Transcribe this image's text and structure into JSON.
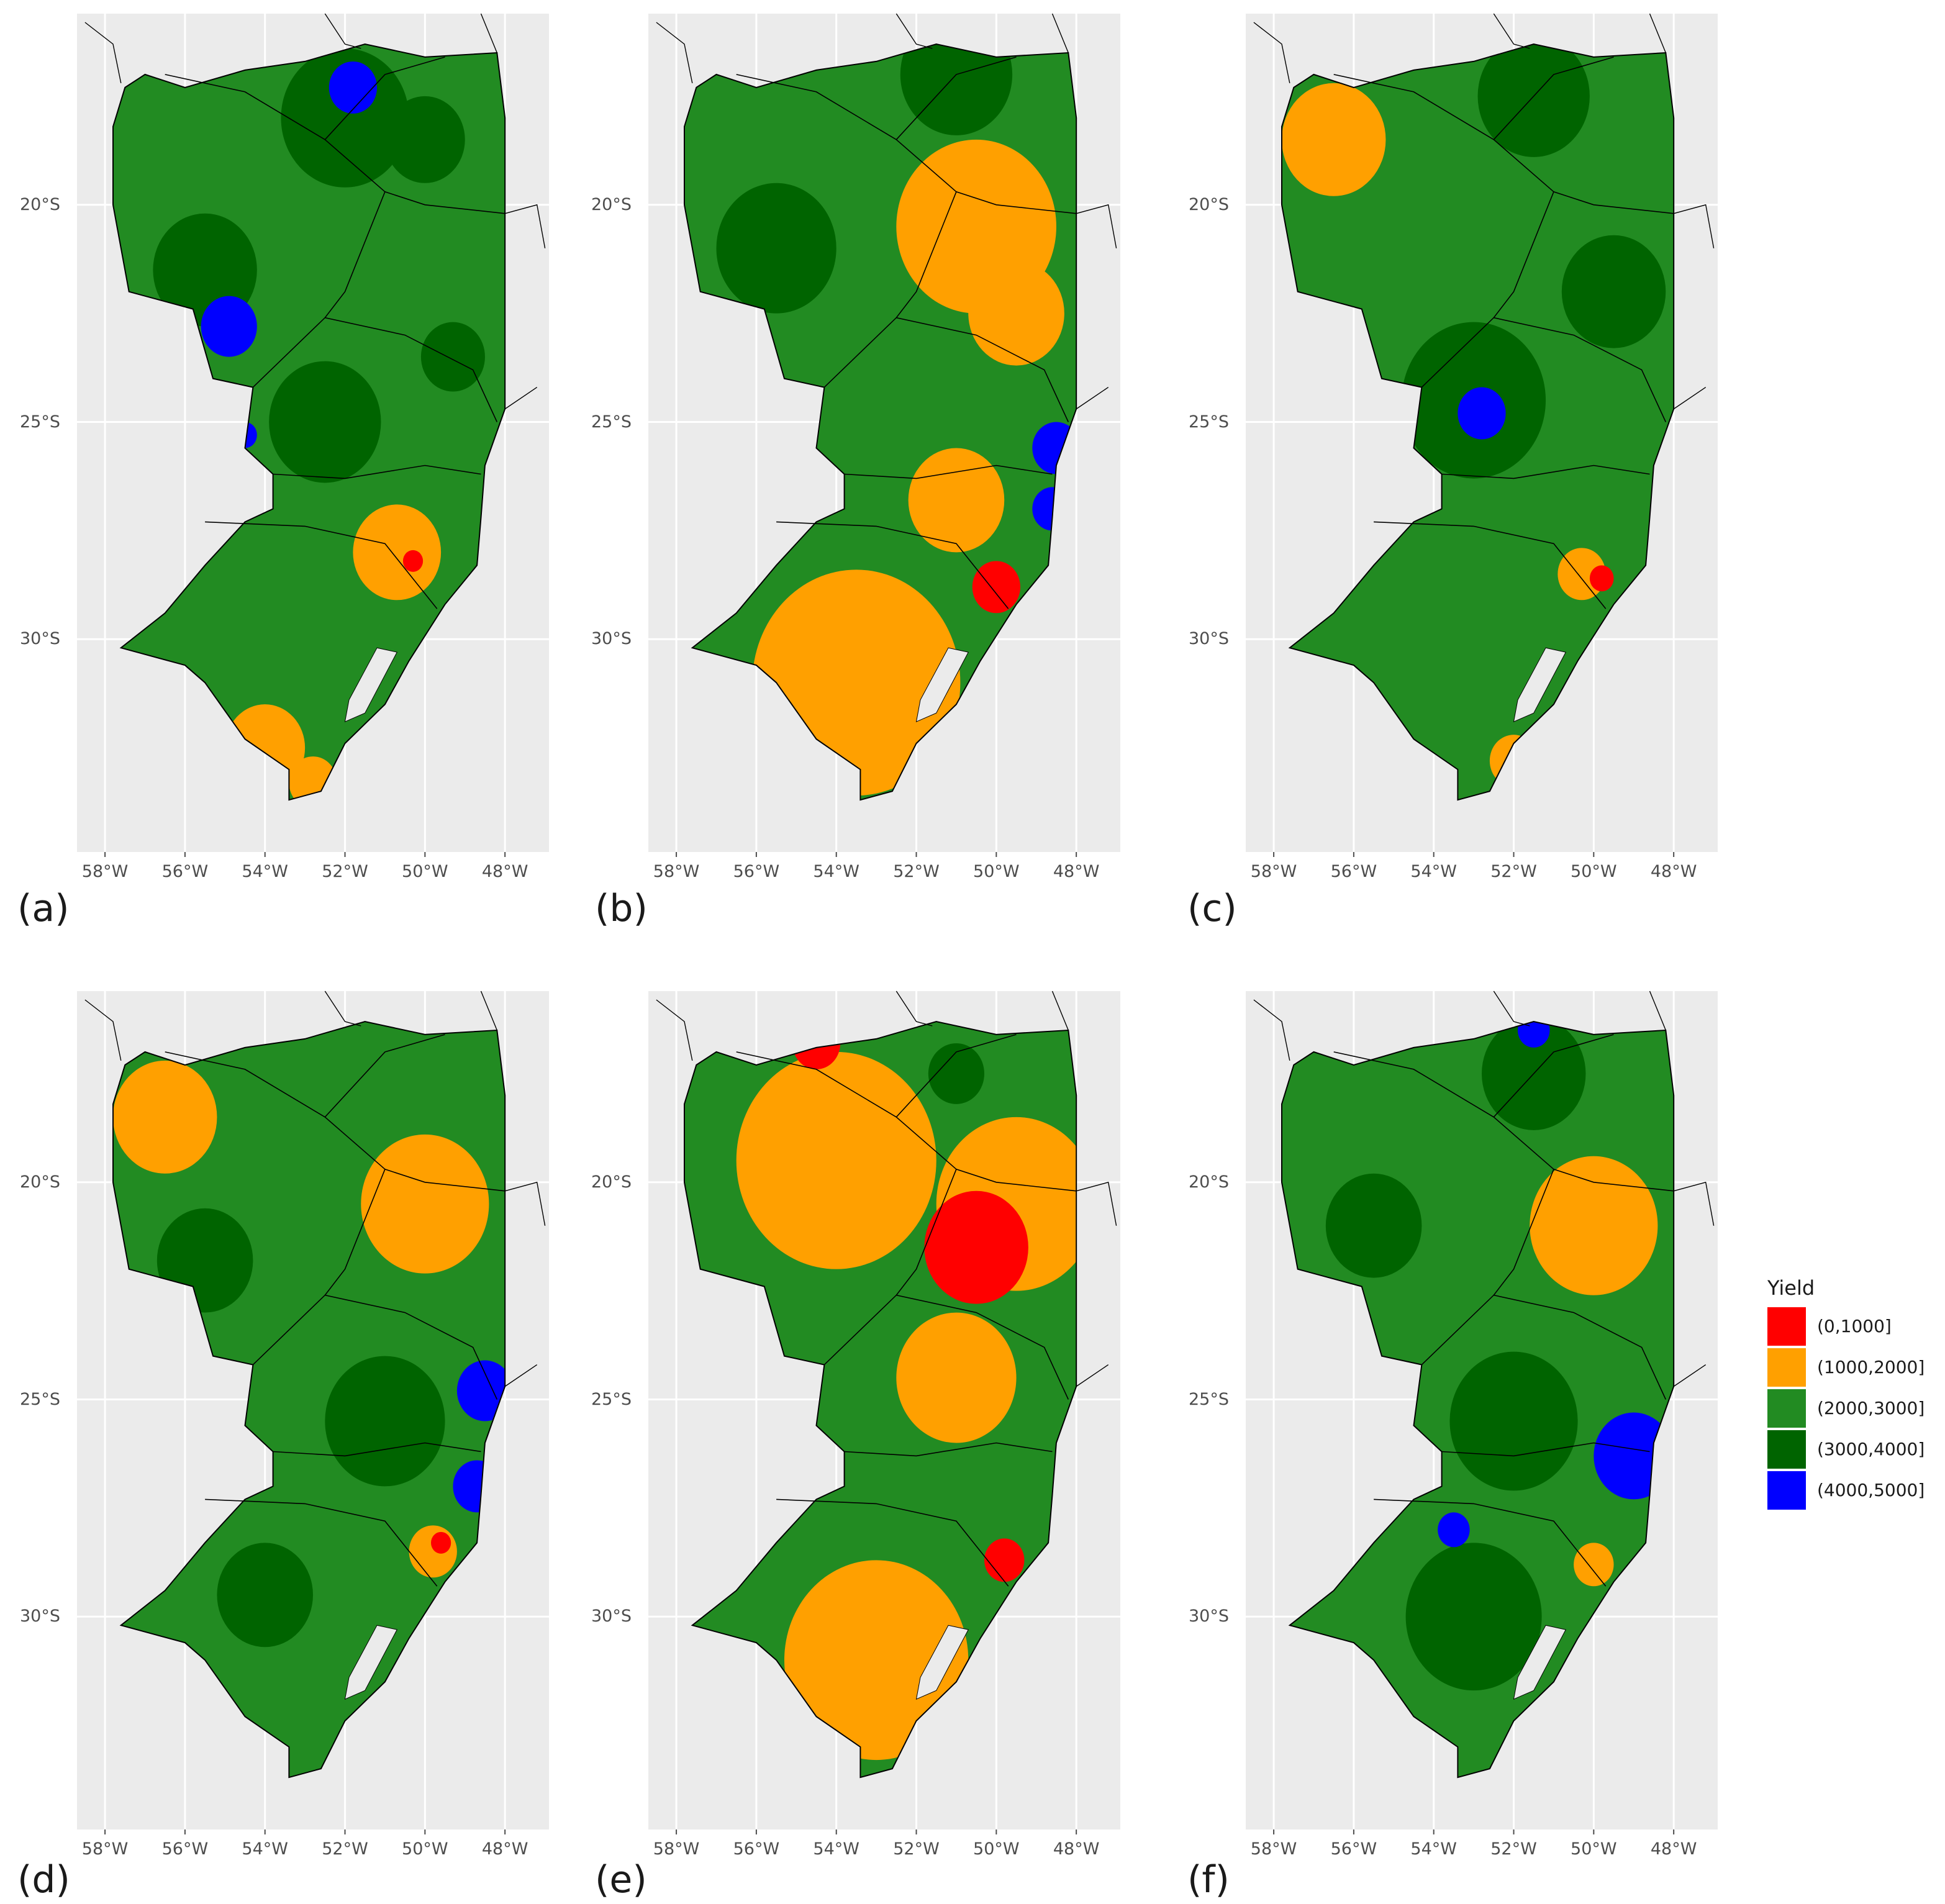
{
  "legend": {
    "title": "Yield",
    "items": [
      {
        "label": "(0,1000]",
        "color": "#ff0000"
      },
      {
        "label": "(1000,2000]",
        "color": "#ffa000"
      },
      {
        "label": "(2000,3000]",
        "color": "#228b22"
      },
      {
        "label": "(3000,4000]",
        "color": "#006400"
      },
      {
        "label": "(4000,5000]",
        "color": "#0000ff"
      }
    ]
  },
  "axes": {
    "x_ticks": [
      "58°W",
      "56°W",
      "54°W",
      "52°W",
      "50°W",
      "48°W"
    ],
    "x_values": [
      -58,
      -56,
      -54,
      -52,
      -50,
      -48
    ],
    "y_ticks": [
      "20°S",
      "25°S",
      "30°S"
    ],
    "y_values": [
      -20,
      -25,
      -30
    ],
    "xlim": [
      -58.7,
      -46.9
    ],
    "ylim": [
      -34.9,
      -15.6
    ]
  },
  "colors": {
    "panel_background": "#ebebeb",
    "grid": "#ffffff",
    "border": "#000000"
  },
  "panels": [
    {
      "label": "(a)",
      "patches": [
        {
          "cls": 3,
          "lon": -52.0,
          "lat": -18.0,
          "r": 1.6
        },
        {
          "cls": 3,
          "lon": -55.5,
          "lat": -21.5,
          "r": 1.3
        },
        {
          "cls": 3,
          "lon": -50.0,
          "lat": -18.5,
          "r": 1.0
        },
        {
          "cls": 3,
          "lon": -52.5,
          "lat": -25.0,
          "r": 1.4
        },
        {
          "cls": 3,
          "lon": -49.3,
          "lat": -23.5,
          "r": 0.8
        },
        {
          "cls": 4,
          "lon": -51.8,
          "lat": -17.3,
          "r": 0.6
        },
        {
          "cls": 4,
          "lon": -54.9,
          "lat": -22.8,
          "r": 0.7
        },
        {
          "cls": 4,
          "lon": -54.5,
          "lat": -25.3,
          "r": 0.3
        },
        {
          "cls": 1,
          "lon": -50.7,
          "lat": -28.0,
          "r": 1.1
        },
        {
          "cls": 1,
          "lon": -54.0,
          "lat": -32.5,
          "r": 1.0
        },
        {
          "cls": 1,
          "lon": -52.8,
          "lat": -33.3,
          "r": 0.6
        },
        {
          "cls": 0,
          "lon": -50.3,
          "lat": -28.2,
          "r": 0.25
        }
      ]
    },
    {
      "label": "(b)",
      "patches": [
        {
          "cls": 3,
          "lon": -51.0,
          "lat": -17.0,
          "r": 1.4
        },
        {
          "cls": 3,
          "lon": -55.5,
          "lat": -21.0,
          "r": 1.5
        },
        {
          "cls": 1,
          "lon": -50.5,
          "lat": -20.5,
          "r": 2.0
        },
        {
          "cls": 1,
          "lon": -49.5,
          "lat": -22.5,
          "r": 1.2
        },
        {
          "cls": 1,
          "lon": -53.5,
          "lat": -31.0,
          "r": 2.6
        },
        {
          "cls": 1,
          "lon": -51.0,
          "lat": -26.8,
          "r": 1.2
        },
        {
          "cls": 4,
          "lon": -48.5,
          "lat": -25.6,
          "r": 0.6
        },
        {
          "cls": 4,
          "lon": -48.6,
          "lat": -27.0,
          "r": 0.5
        },
        {
          "cls": 0,
          "lon": -50.0,
          "lat": -28.8,
          "r": 0.6
        }
      ]
    },
    {
      "label": "(c)",
      "patches": [
        {
          "cls": 1,
          "lon": -56.5,
          "lat": -18.5,
          "r": 1.3
        },
        {
          "cls": 3,
          "lon": -51.5,
          "lat": -17.5,
          "r": 1.4
        },
        {
          "cls": 3,
          "lon": -53.0,
          "lat": -24.5,
          "r": 1.8
        },
        {
          "cls": 3,
          "lon": -49.5,
          "lat": -22.0,
          "r": 1.3
        },
        {
          "cls": 4,
          "lon": -52.8,
          "lat": -24.8,
          "r": 0.6
        },
        {
          "cls": 1,
          "lon": -50.3,
          "lat": -28.5,
          "r": 0.6
        },
        {
          "cls": 0,
          "lon": -49.8,
          "lat": -28.6,
          "r": 0.3
        },
        {
          "cls": 1,
          "lon": -52.0,
          "lat": -32.8,
          "r": 0.6
        }
      ]
    },
    {
      "label": "(d)",
      "patches": [
        {
          "cls": 1,
          "lon": -56.5,
          "lat": -18.5,
          "r": 1.3
        },
        {
          "cls": 1,
          "lon": -50.0,
          "lat": -20.5,
          "r": 1.6
        },
        {
          "cls": 3,
          "lon": -55.5,
          "lat": -21.8,
          "r": 1.2
        },
        {
          "cls": 3,
          "lon": -51.0,
          "lat": -25.5,
          "r": 1.5
        },
        {
          "cls": 4,
          "lon": -48.5,
          "lat": -24.8,
          "r": 0.7
        },
        {
          "cls": 4,
          "lon": -48.7,
          "lat": -27.0,
          "r": 0.6
        },
        {
          "cls": 1,
          "lon": -49.8,
          "lat": -28.5,
          "r": 0.6
        },
        {
          "cls": 0,
          "lon": -49.6,
          "lat": -28.3,
          "r": 0.25
        },
        {
          "cls": 3,
          "lon": -54.0,
          "lat": -29.5,
          "r": 1.2
        }
      ]
    },
    {
      "label": "(e)",
      "patches": [
        {
          "cls": 1,
          "lon": -54.0,
          "lat": -19.5,
          "r": 2.5
        },
        {
          "cls": 1,
          "lon": -49.5,
          "lat": -20.5,
          "r": 2.0
        },
        {
          "cls": 1,
          "lon": -51.0,
          "lat": -24.5,
          "r": 1.5
        },
        {
          "cls": 1,
          "lon": -53.0,
          "lat": -31.0,
          "r": 2.3
        },
        {
          "cls": 0,
          "lon": -50.5,
          "lat": -21.5,
          "r": 1.3
        },
        {
          "cls": 0,
          "lon": -54.5,
          "lat": -16.8,
          "r": 0.6
        },
        {
          "cls": 0,
          "lon": -49.8,
          "lat": -28.7,
          "r": 0.5
        },
        {
          "cls": 3,
          "lon": -51.0,
          "lat": -17.5,
          "r": 0.7
        }
      ]
    },
    {
      "label": "(f)",
      "patches": [
        {
          "cls": 3,
          "lon": -51.5,
          "lat": -17.5,
          "r": 1.3
        },
        {
          "cls": 3,
          "lon": -55.5,
          "lat": -21.0,
          "r": 1.2
        },
        {
          "cls": 3,
          "lon": -52.0,
          "lat": -25.5,
          "r": 1.6
        },
        {
          "cls": 3,
          "lon": -53.0,
          "lat": -30.0,
          "r": 1.7
        },
        {
          "cls": 1,
          "lon": -50.0,
          "lat": -21.0,
          "r": 1.6
        },
        {
          "cls": 4,
          "lon": -49.0,
          "lat": -26.3,
          "r": 1.0
        },
        {
          "cls": 4,
          "lon": -53.5,
          "lat": -28.0,
          "r": 0.4
        },
        {
          "cls": 4,
          "lon": -51.5,
          "lat": -16.5,
          "r": 0.4
        },
        {
          "cls": 1,
          "lon": -50.0,
          "lat": -28.8,
          "r": 0.5
        }
      ]
    }
  ]
}
